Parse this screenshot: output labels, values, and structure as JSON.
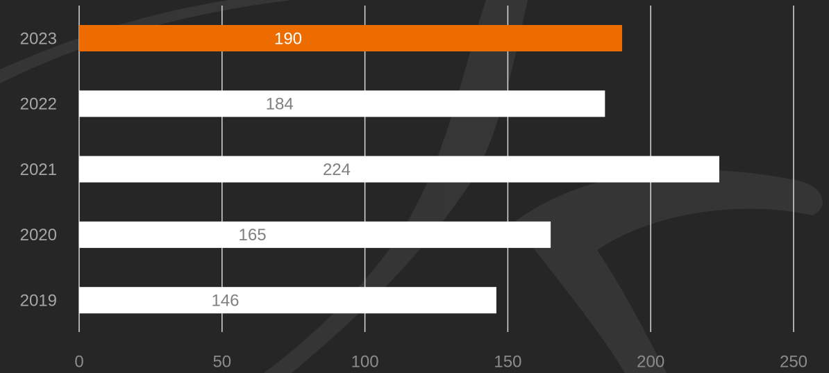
{
  "chart_data": {
    "type": "hbar",
    "categories": [
      "2023",
      "2022",
      "2021",
      "2020",
      "2019"
    ],
    "values": [
      190,
      184,
      224,
      165,
      146
    ],
    "colors": [
      "#ed6c00",
      "#ffffff",
      "#ffffff",
      "#ffffff",
      "#ffffff"
    ],
    "xlim": [
      0,
      250
    ],
    "xticks": [
      0,
      50,
      100,
      150,
      200,
      250
    ],
    "grid": true
  }
}
